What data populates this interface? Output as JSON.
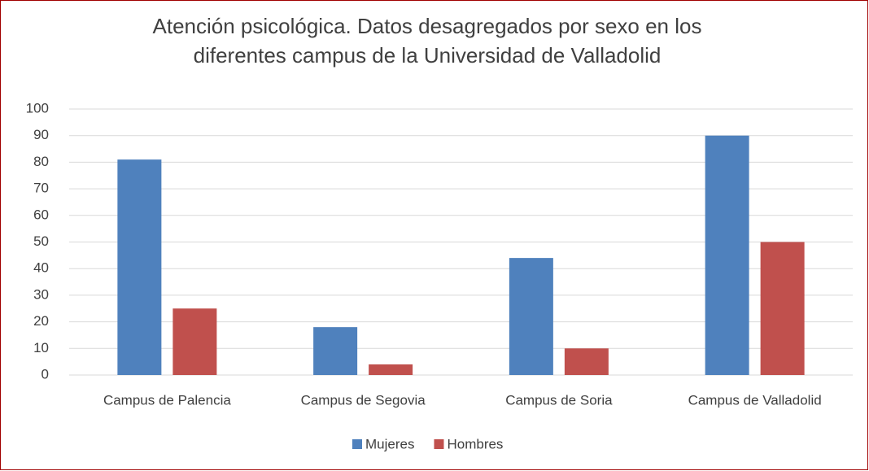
{
  "chart_data": {
    "type": "bar",
    "title": [
      "Atención psicológica. Datos desagregados por sexo en los",
      "diferentes campus de la Universidad de Valladolid"
    ],
    "categories": [
      "Campus de Palencia",
      "Campus de Segovia",
      "Campus de Soria",
      "Campus de Valladolid"
    ],
    "series": [
      {
        "name": "Mujeres",
        "color": "#4f81bd",
        "values": [
          81,
          18,
          44,
          90
        ]
      },
      {
        "name": "Hombres",
        "color": "#c0504d",
        "values": [
          25,
          4,
          10,
          50
        ]
      }
    ],
    "ylim": [
      0,
      100
    ],
    "yticks": [
      0,
      10,
      20,
      30,
      40,
      50,
      60,
      70,
      80,
      90,
      100
    ],
    "grid": true,
    "legend": "bottom"
  }
}
